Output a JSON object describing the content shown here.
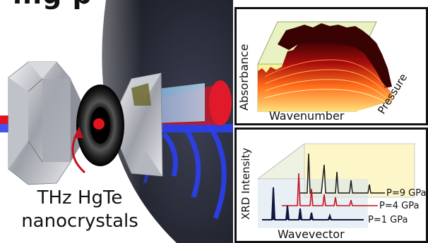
{
  "title_fragment": "ing p",
  "caption": {
    "line1": "THz HgTe",
    "line2": "nanocrystals"
  },
  "absorbance_panel": {
    "ylabel": "Absorbance",
    "xlabel": "Wavenumber",
    "zlabel": "Pressure"
  },
  "xrd_panel": {
    "ylabel": "XRD Intensity",
    "xlabel": "Wavevector",
    "series": [
      {
        "name": "P=9 GPa",
        "color": "#1a1a1a"
      },
      {
        "name": "P=4 GPa",
        "color": "#c0121a"
      },
      {
        "name": "P=1 GPa",
        "color": "#101540"
      }
    ]
  },
  "colors": {
    "beam_red": "#e0141e",
    "beam_blue": "#2b3ff0",
    "dark_bg": "#2a2d3a"
  }
}
